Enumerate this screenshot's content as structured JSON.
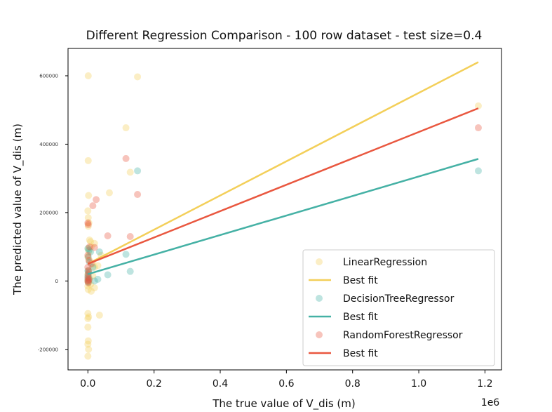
{
  "chart_data": {
    "type": "scatter",
    "title": "Different Regression Comparison - 100 row dataset - test size=0.4",
    "xlabel": "The true value of V_dis (m)",
    "ylabel": "The predicted value of V_dis (m)",
    "x_offset_label": "1e6",
    "xlim": [
      -60000,
      1250000
    ],
    "ylim": [
      -260000,
      680000
    ],
    "x_ticks": [
      0,
      200000,
      400000,
      600000,
      800000,
      1000000,
      1200000
    ],
    "x_tick_labels": [
      "0.0",
      "0.2",
      "0.4",
      "0.6",
      "0.8",
      "1.0",
      "1.2"
    ],
    "y_ticks": [
      -200000,
      0,
      200000,
      400000,
      600000
    ],
    "y_tick_labels": [
      "-200000",
      "0",
      "200000",
      "400000",
      "600000"
    ],
    "grid": false,
    "legend_position": "lower-right",
    "series": [
      {
        "name": "LinearRegression",
        "kind": "scatter",
        "color": "#f3cf59",
        "points": [
          [
            1000,
            600000
          ],
          [
            1000,
            352000
          ],
          [
            2000,
            250000
          ],
          [
            0,
            205000
          ],
          [
            1000,
            185000
          ],
          [
            3000,
            170000
          ],
          [
            1000,
            160000
          ],
          [
            5000,
            120000
          ],
          [
            8000,
            115000
          ],
          [
            20000,
            110000
          ],
          [
            10000,
            100000
          ],
          [
            1000,
            95000
          ],
          [
            3000,
            85000
          ],
          [
            0,
            70000
          ],
          [
            5000,
            60000
          ],
          [
            15000,
            50000
          ],
          [
            20000,
            40000
          ],
          [
            2000,
            30000
          ],
          [
            0,
            20000
          ],
          [
            1000,
            10000
          ],
          [
            5000,
            5000
          ],
          [
            0,
            0
          ],
          [
            2000,
            -5000
          ],
          [
            8000,
            -10000
          ],
          [
            0,
            -15000
          ],
          [
            20000,
            -20000
          ],
          [
            1000,
            -25000
          ],
          [
            10000,
            -30000
          ],
          [
            0,
            -95000
          ],
          [
            2000,
            -105000
          ],
          [
            0,
            -110000
          ],
          [
            35000,
            -100000
          ],
          [
            0,
            -135000
          ],
          [
            1000,
            -175000
          ],
          [
            0,
            -185000
          ],
          [
            2000,
            -200000
          ],
          [
            0,
            -220000
          ],
          [
            65000,
            258000
          ],
          [
            115000,
            448000
          ],
          [
            128000,
            318000
          ],
          [
            150000,
            597000
          ],
          [
            1180000,
            512000
          ],
          [
            40000,
            75000
          ],
          [
            30000,
            45000
          ],
          [
            15000,
            15000
          ]
        ]
      },
      {
        "name": "Best fit",
        "kind": "line",
        "color": "#f3cf59",
        "x": [
          0,
          1180000
        ],
        "y": [
          50000,
          640000
        ]
      },
      {
        "name": "DecisionTreeRegressor",
        "kind": "scatter",
        "color": "#45b1a5",
        "points": [
          [
            0,
            95000
          ],
          [
            3000,
            90000
          ],
          [
            8000,
            85000
          ],
          [
            1000,
            70000
          ],
          [
            5000,
            55000
          ],
          [
            15000,
            40000
          ],
          [
            0,
            30000
          ],
          [
            2000,
            25000
          ],
          [
            0,
            15000
          ],
          [
            3000,
            10000
          ],
          [
            0,
            5000
          ],
          [
            20000,
            0
          ],
          [
            1000,
            -3000
          ],
          [
            30000,
            5000
          ],
          [
            35000,
            85000
          ],
          [
            60000,
            18000
          ],
          [
            115000,
            78000
          ],
          [
            128000,
            28000
          ],
          [
            150000,
            322000
          ],
          [
            1180000,
            322000
          ]
        ]
      },
      {
        "name": "Best fit",
        "kind": "line",
        "color": "#45b1a5",
        "x": [
          0,
          1180000
        ],
        "y": [
          20000,
          357000
        ]
      },
      {
        "name": "RandomForestRegressor",
        "kind": "scatter",
        "color": "#e9573f",
        "points": [
          [
            0,
            170000
          ],
          [
            1000,
            165000
          ],
          [
            15000,
            220000
          ],
          [
            25000,
            238000
          ],
          [
            5000,
            100000
          ],
          [
            20000,
            98000
          ],
          [
            0,
            75000
          ],
          [
            3000,
            60000
          ],
          [
            10000,
            50000
          ],
          [
            0,
            40000
          ],
          [
            2000,
            30000
          ],
          [
            1000,
            20000
          ],
          [
            0,
            10000
          ],
          [
            3000,
            5000
          ],
          [
            0,
            0
          ],
          [
            1000,
            -5000
          ],
          [
            2000,
            2000
          ],
          [
            60000,
            132000
          ],
          [
            115000,
            358000
          ],
          [
            128000,
            130000
          ],
          [
            150000,
            253000
          ],
          [
            1180000,
            448000
          ]
        ]
      },
      {
        "name": "Best fit",
        "kind": "line",
        "color": "#e9573f",
        "x": [
          0,
          1180000
        ],
        "y": [
          50000,
          505000
        ]
      }
    ]
  }
}
